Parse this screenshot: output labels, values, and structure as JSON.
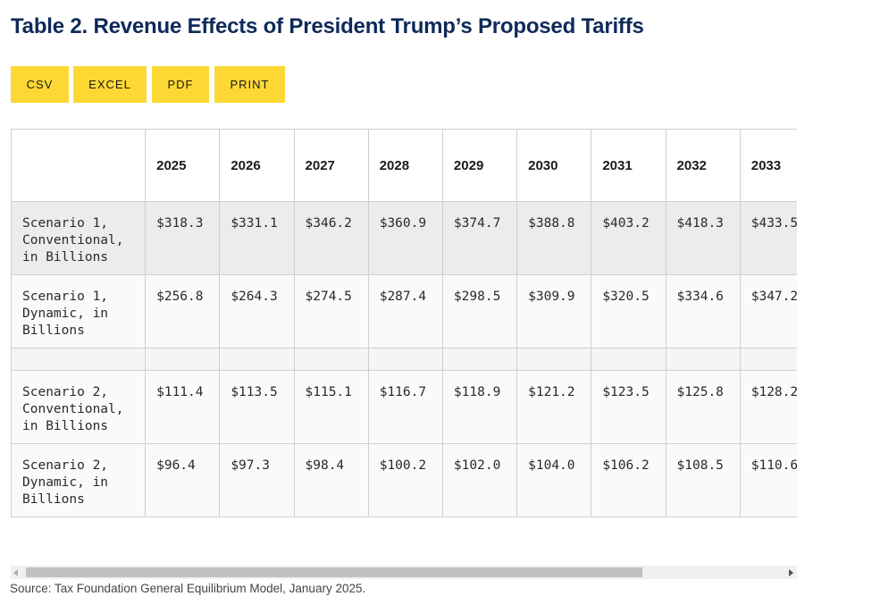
{
  "title": "Table 2. Revenue Effects of President Trump’s Proposed Tariffs",
  "toolbar": {
    "csv_label": "CSV",
    "excel_label": "EXCEL",
    "pdf_label": "PDF",
    "print_label": "PRINT"
  },
  "table": {
    "corner_header": "",
    "years": [
      "2025",
      "2026",
      "2027",
      "2028",
      "2029",
      "2030",
      "2031",
      "2032",
      "2033"
    ],
    "rows": [
      {
        "label": "Scenario 1, Conventional, in Billions",
        "values": [
          "$318.3",
          "$331.1",
          "$346.2",
          "$360.9",
          "$374.7",
          "$388.8",
          "$403.2",
          "$418.3",
          "$433.5"
        ]
      },
      {
        "label": "Scenario 1, Dynamic, in Billions",
        "values": [
          "$256.8",
          "$264.3",
          "$274.5",
          "$287.4",
          "$298.5",
          "$309.9",
          "$320.5",
          "$334.6",
          "$347.2"
        ]
      },
      {
        "label": "Scenario 2, Conventional, in Billions",
        "values": [
          "$111.4",
          "$113.5",
          "$115.1",
          "$116.7",
          "$118.9",
          "$121.2",
          "$123.5",
          "$125.8",
          "$128.2"
        ]
      },
      {
        "label": "Scenario 2, Dynamic, in Billions",
        "values": [
          "$96.4",
          "$97.3",
          "$98.4",
          "$100.2",
          "$102.0",
          "$104.0",
          "$106.2",
          "$108.5",
          "$110.6"
        ]
      }
    ]
  },
  "source": "Source: Tax Foundation General Equilibrium Model, January 2025.",
  "colors": {
    "title": "#0e2a5a",
    "button_bg": "#fdd835",
    "row_shade": "#ececec",
    "border": "#cfcfcf"
  },
  "icons": {
    "scroll_left": "chevron-left-icon",
    "scroll_right": "chevron-right-icon"
  }
}
